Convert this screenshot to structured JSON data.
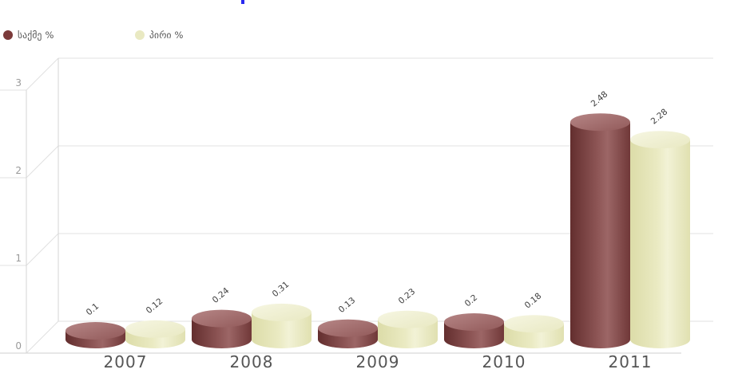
{
  "artifact": {
    "color": "#2a2af0"
  },
  "legend": {
    "items": [
      {
        "label": "საქმე %",
        "color": "#7b3a3a"
      },
      {
        "label": "პირი %",
        "color": "#e9e9c2"
      }
    ]
  },
  "chart_data": {
    "type": "bar",
    "style": "3d-cylinder",
    "title": "",
    "categories": [
      "2007",
      "2008",
      "2009",
      "2010",
      "2011"
    ],
    "series": [
      {
        "name": "საქმე %",
        "color": "#7b3a3a",
        "values": [
          0.1,
          0.24,
          0.13,
          0.2,
          2.48
        ],
        "body_gradient": [
          "#632e2e",
          "#8d5555",
          "#9c6666",
          "#703838"
        ],
        "top_gradient": [
          "#b68686",
          "#925a5a"
        ]
      },
      {
        "name": "პირი %",
        "color": "#e9e9c2",
        "values": [
          0.12,
          0.31,
          0.23,
          0.18,
          2.28
        ],
        "body_gradient": [
          "#dcdca8",
          "#eaeac2",
          "#f2f2d6",
          "#e0e0b0"
        ],
        "top_gradient": [
          "#f6f6e2",
          "#e9e9c3"
        ]
      }
    ],
    "value_labels": [
      [
        "0.1",
        "0.24",
        "0.13",
        "0.2",
        "2.48"
      ],
      [
        "0.12",
        "0.31",
        "0.23",
        "0.18",
        "2.28"
      ]
    ],
    "yticks": [
      "0",
      "1",
      "2",
      "3"
    ],
    "ylim": [
      0,
      3
    ],
    "grid": true,
    "legend_position": "top-left",
    "colors": {
      "grid": "#e0e0e0",
      "axis": "#d6d6d6",
      "y_label": "#9a9a9a",
      "category_label": "#555555",
      "value_label": "#3d3d3d"
    }
  }
}
